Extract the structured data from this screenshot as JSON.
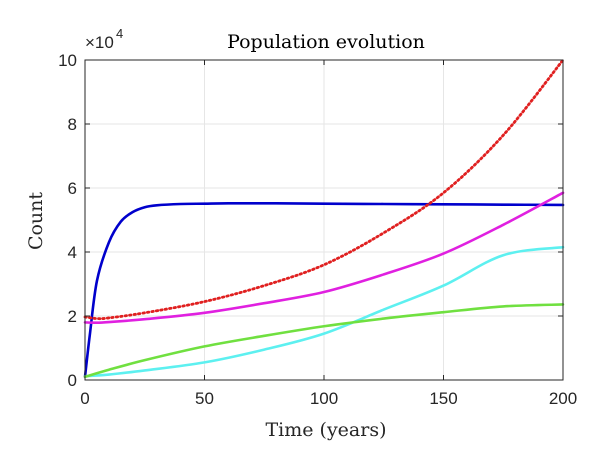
{
  "chart_data": {
    "type": "line",
    "title": "Population evolution",
    "xlabel": "Time (years)",
    "ylabel": "Count",
    "xlim": [
      0,
      200
    ],
    "ylim": [
      0,
      10
    ],
    "y_exponent_base": "×10",
    "y_exponent_power": "4",
    "grid": true,
    "xticks": [
      "0",
      "50",
      "100",
      "150",
      "200"
    ],
    "yticks": [
      "0",
      "2",
      "4",
      "6",
      "8",
      "10"
    ],
    "series": [
      {
        "color": "#0000cc",
        "style": "solid",
        "x": [
          0,
          2,
          5,
          10,
          15,
          20,
          25,
          30,
          40,
          50,
          60,
          80,
          100,
          125,
          150,
          175,
          200
        ],
        "y": [
          0.1,
          1.4,
          3.1,
          4.3,
          4.95,
          5.25,
          5.4,
          5.46,
          5.5,
          5.51,
          5.52,
          5.52,
          5.51,
          5.5,
          5.49,
          5.48,
          5.47
        ]
      },
      {
        "color": "#e02020",
        "style": "dotted",
        "x": [
          0,
          5,
          10,
          25,
          50,
          75,
          100,
          125,
          150,
          175,
          200
        ],
        "y": [
          1.97,
          1.92,
          1.94,
          2.1,
          2.45,
          2.95,
          3.6,
          4.6,
          5.85,
          7.65,
          10.0
        ]
      },
      {
        "color": "#e020e0",
        "style": "solid",
        "x": [
          0,
          5,
          10,
          25,
          50,
          75,
          100,
          125,
          150,
          175,
          200
        ],
        "y": [
          1.8,
          1.79,
          1.81,
          1.9,
          2.1,
          2.4,
          2.75,
          3.3,
          3.95,
          4.85,
          5.85
        ]
      },
      {
        "color": "#5df0f0",
        "style": "solid",
        "x": [
          0,
          10,
          25,
          50,
          75,
          100,
          125,
          150,
          175,
          200
        ],
        "y": [
          0.12,
          0.17,
          0.3,
          0.55,
          0.95,
          1.45,
          2.2,
          2.95,
          3.9,
          4.15
        ]
      },
      {
        "color": "#70e040",
        "style": "solid",
        "x": [
          0,
          10,
          25,
          50,
          75,
          100,
          125,
          150,
          175,
          200
        ],
        "y": [
          0.1,
          0.32,
          0.62,
          1.05,
          1.38,
          1.68,
          1.92,
          2.12,
          2.3,
          2.36
        ]
      }
    ]
  }
}
